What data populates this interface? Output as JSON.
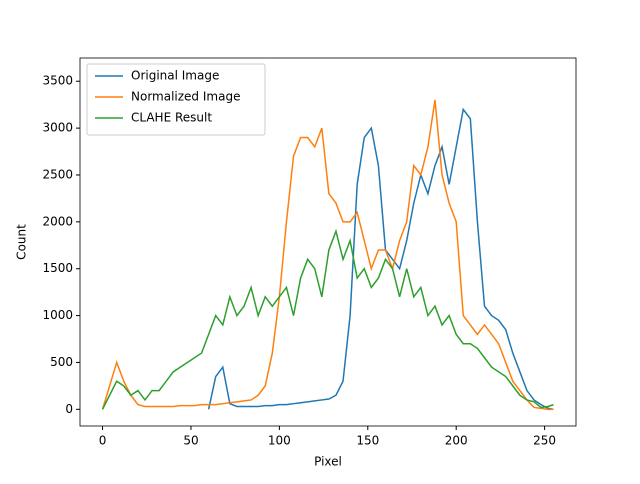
{
  "chart_data": {
    "type": "line",
    "x_label": "Pixel",
    "y_label": "Count",
    "x": [
      0,
      4,
      8,
      12,
      16,
      20,
      24,
      28,
      32,
      36,
      40,
      44,
      48,
      52,
      56,
      60,
      64,
      68,
      72,
      76,
      80,
      84,
      88,
      92,
      96,
      100,
      104,
      108,
      112,
      116,
      120,
      124,
      128,
      132,
      136,
      140,
      144,
      148,
      152,
      156,
      160,
      164,
      168,
      172,
      176,
      180,
      184,
      188,
      192,
      196,
      200,
      204,
      208,
      212,
      216,
      220,
      224,
      228,
      232,
      236,
      240,
      244,
      248,
      252,
      255
    ],
    "series": [
      {
        "name": "Original Image",
        "color": "#1f77b4",
        "values": [
          null,
          null,
          null,
          null,
          null,
          null,
          null,
          null,
          null,
          null,
          null,
          null,
          null,
          null,
          null,
          0,
          350,
          450,
          60,
          30,
          30,
          30,
          30,
          40,
          40,
          50,
          50,
          60,
          70,
          80,
          90,
          100,
          110,
          150,
          300,
          1000,
          2400,
          2900,
          3000,
          2600,
          1700,
          1600,
          1500,
          1800,
          2200,
          2500,
          2300,
          2600,
          2800,
          2400,
          2800,
          3200,
          3100,
          2000,
          1100,
          1000,
          950,
          850,
          600,
          400,
          200,
          100,
          50,
          10,
          0
        ]
      },
      {
        "name": "Normalized Image",
        "color": "#ff7f0e",
        "values": [
          0,
          250,
          500,
          300,
          150,
          50,
          30,
          30,
          30,
          30,
          30,
          40,
          40,
          40,
          50,
          50,
          50,
          60,
          70,
          80,
          90,
          100,
          150,
          250,
          600,
          1200,
          2000,
          2700,
          2900,
          2900,
          2800,
          3000,
          2300,
          2200,
          2000,
          2000,
          2100,
          1800,
          1500,
          1700,
          1700,
          1500,
          1800,
          2000,
          2600,
          2500,
          2800,
          3300,
          2500,
          2200,
          2000,
          1000,
          900,
          800,
          900,
          800,
          700,
          500,
          300,
          200,
          100,
          20,
          10,
          0,
          0
        ]
      },
      {
        "name": "CLAHE Result",
        "color": "#2ca02c",
        "values": [
          0,
          150,
          300,
          250,
          150,
          200,
          100,
          200,
          200,
          300,
          400,
          450,
          500,
          550,
          600,
          800,
          1000,
          900,
          1200,
          1000,
          1100,
          1300,
          1000,
          1200,
          1100,
          1200,
          1300,
          1000,
          1400,
          1600,
          1500,
          1200,
          1700,
          1900,
          1600,
          1800,
          1400,
          1500,
          1300,
          1400,
          1600,
          1500,
          1200,
          1500,
          1200,
          1300,
          1000,
          1100,
          900,
          1000,
          800,
          700,
          700,
          650,
          550,
          450,
          400,
          350,
          250,
          150,
          100,
          80,
          20,
          30,
          50
        ]
      }
    ],
    "xlim": [
      -12.75,
      267.75
    ],
    "ylim": [
      -178,
      3748
    ],
    "xticks": [
      0,
      50,
      100,
      150,
      200,
      250
    ],
    "yticks": [
      0,
      500,
      1000,
      1500,
      2000,
      2500,
      3000,
      3500
    ],
    "legend": "upper left"
  }
}
